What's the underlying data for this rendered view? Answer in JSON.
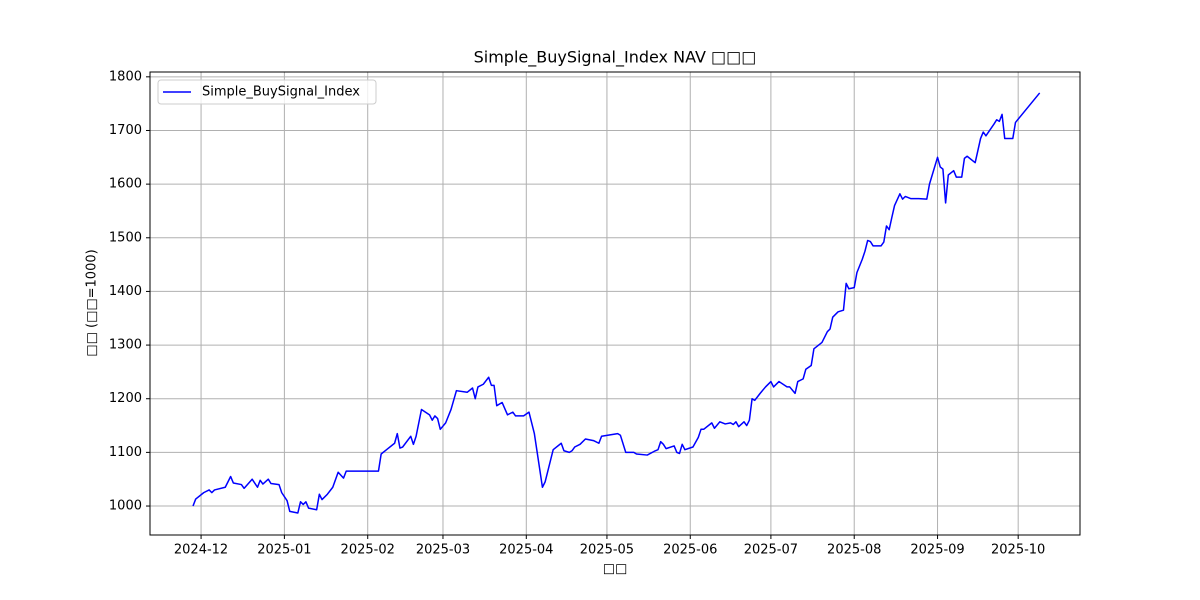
{
  "chart_data": {
    "type": "line",
    "title": "Simple_BuySignal_Index NAV □□□",
    "xlabel": "□□",
    "ylabel": "□□ (□□=1000)",
    "grid": true,
    "legend": "upper left",
    "xlim": [
      20039,
      20385
    ],
    "ylim": [
      946,
      1809
    ],
    "xticks": [
      {
        "value": 20058,
        "label": "2024-12"
      },
      {
        "value": 20089,
        "label": "2025-01"
      },
      {
        "value": 20120,
        "label": "2025-02"
      },
      {
        "value": 20148,
        "label": "2025-03"
      },
      {
        "value": 20179,
        "label": "2025-04"
      },
      {
        "value": 20209,
        "label": "2025-05"
      },
      {
        "value": 20240,
        "label": "2025-06"
      },
      {
        "value": 20270,
        "label": "2025-07"
      },
      {
        "value": 20301,
        "label": "2025-08"
      },
      {
        "value": 20332,
        "label": "2025-09"
      },
      {
        "value": 20362,
        "label": "2025-10"
      }
    ],
    "yticks": [
      1000,
      1100,
      1200,
      1300,
      1400,
      1500,
      1600,
      1700,
      1800
    ],
    "x": [
      20055,
      20056,
      20059,
      20061,
      20062,
      20063,
      20067,
      20069,
      20070,
      20073,
      20074,
      20077,
      20079,
      20080,
      20081,
      20083,
      20084,
      20087,
      20088,
      20090,
      20091,
      20094,
      20095,
      20096,
      20097,
      20098,
      20101,
      20102,
      20103,
      20105,
      20107,
      20109,
      20111,
      20112,
      20124,
      20125,
      20127,
      20130,
      20131,
      20132,
      20133,
      20136,
      20137,
      20138,
      20140,
      20143,
      20144,
      20145,
      20146,
      20147,
      20149,
      20151,
      20153,
      20157,
      20159,
      20160,
      20161,
      20163,
      20165,
      20166,
      20167,
      20168,
      20170,
      20172,
      20174,
      20175,
      20178,
      20180,
      20182,
      20185,
      20186,
      20188,
      20189,
      20192,
      20193,
      20195,
      20196,
      20197,
      20199,
      20201,
      20204,
      20206,
      20207,
      20213,
      20214,
      20216,
      20219,
      20220,
      20224,
      20227,
      20228,
      20229,
      20230,
      20231,
      20234,
      20235,
      20236,
      20237,
      20238,
      20241,
      20243,
      20244,
      20245,
      20248,
      20249,
      20251,
      20253,
      20255,
      20256,
      20257,
      20258,
      20260,
      20261,
      20262,
      20263,
      20264,
      20266,
      20268,
      20270,
      20271,
      20273,
      20276,
      20277,
      20279,
      20280,
      20282,
      20283,
      20285,
      20286,
      20289,
      20291,
      20292,
      20293,
      20295,
      20297,
      20298,
      20299,
      20301,
      20302,
      20304,
      20305,
      20306,
      20307,
      20308,
      20311,
      20312,
      20313,
      20314,
      20315,
      20316,
      20318,
      20319,
      20320,
      20322,
      20325,
      20328,
      20329,
      20332,
      20333,
      20334,
      20335,
      20336,
      20338,
      20339,
      20341,
      20342,
      20343,
      20346,
      20348,
      20349,
      20350,
      20353,
      20354,
      20355,
      20356,
      20357,
      20360,
      20361,
      20370
    ],
    "series": [
      {
        "name": "Simple_BuySignal_Index",
        "color": "#0000ff",
        "values": [
          1000,
          1013,
          1025,
          1030,
          1025,
          1030,
          1035,
          1055,
          1043,
          1040,
          1033,
          1050,
          1035,
          1048,
          1041,
          1050,
          1042,
          1040,
          1025,
          1010,
          990,
          987,
          1008,
          1003,
          1008,
          996,
          993,
          1022,
          1012,
          1022,
          1035,
          1063,
          1052,
          1065,
          1065,
          1097,
          1105,
          1117,
          1135,
          1108,
          1110,
          1130,
          1115,
          1130,
          1180,
          1170,
          1160,
          1168,
          1163,
          1143,
          1155,
          1180,
          1215,
          1212,
          1220,
          1200,
          1222,
          1227,
          1240,
          1225,
          1225,
          1187,
          1193,
          1170,
          1175,
          1168,
          1168,
          1175,
          1135,
          1035,
          1045,
          1085,
          1105,
          1117,
          1103,
          1100,
          1103,
          1110,
          1115,
          1125,
          1122,
          1117,
          1130,
          1135,
          1132,
          1100,
          1100,
          1097,
          1095,
          1103,
          1105,
          1120,
          1115,
          1107,
          1112,
          1100,
          1098,
          1115,
          1105,
          1110,
          1128,
          1143,
          1143,
          1155,
          1145,
          1157,
          1153,
          1155,
          1152,
          1157,
          1148,
          1157,
          1150,
          1160,
          1200,
          1197,
          1210,
          1222,
          1232,
          1222,
          1232,
          1222,
          1222,
          1210,
          1232,
          1237,
          1255,
          1262,
          1293,
          1305,
          1325,
          1330,
          1352,
          1362,
          1365,
          1415,
          1405,
          1407,
          1435,
          1460,
          1475,
          1495,
          1493,
          1485,
          1485,
          1492,
          1522,
          1515,
          1538,
          1560,
          1582,
          1572,
          1577,
          1573,
          1573,
          1572,
          1600,
          1650,
          1632,
          1628,
          1565,
          1617,
          1625,
          1613,
          1613,
          1648,
          1652,
          1640,
          1685,
          1697,
          1690,
          1712,
          1720,
          1717,
          1730,
          1685,
          1685,
          1715,
          1770
        ]
      }
    ]
  }
}
